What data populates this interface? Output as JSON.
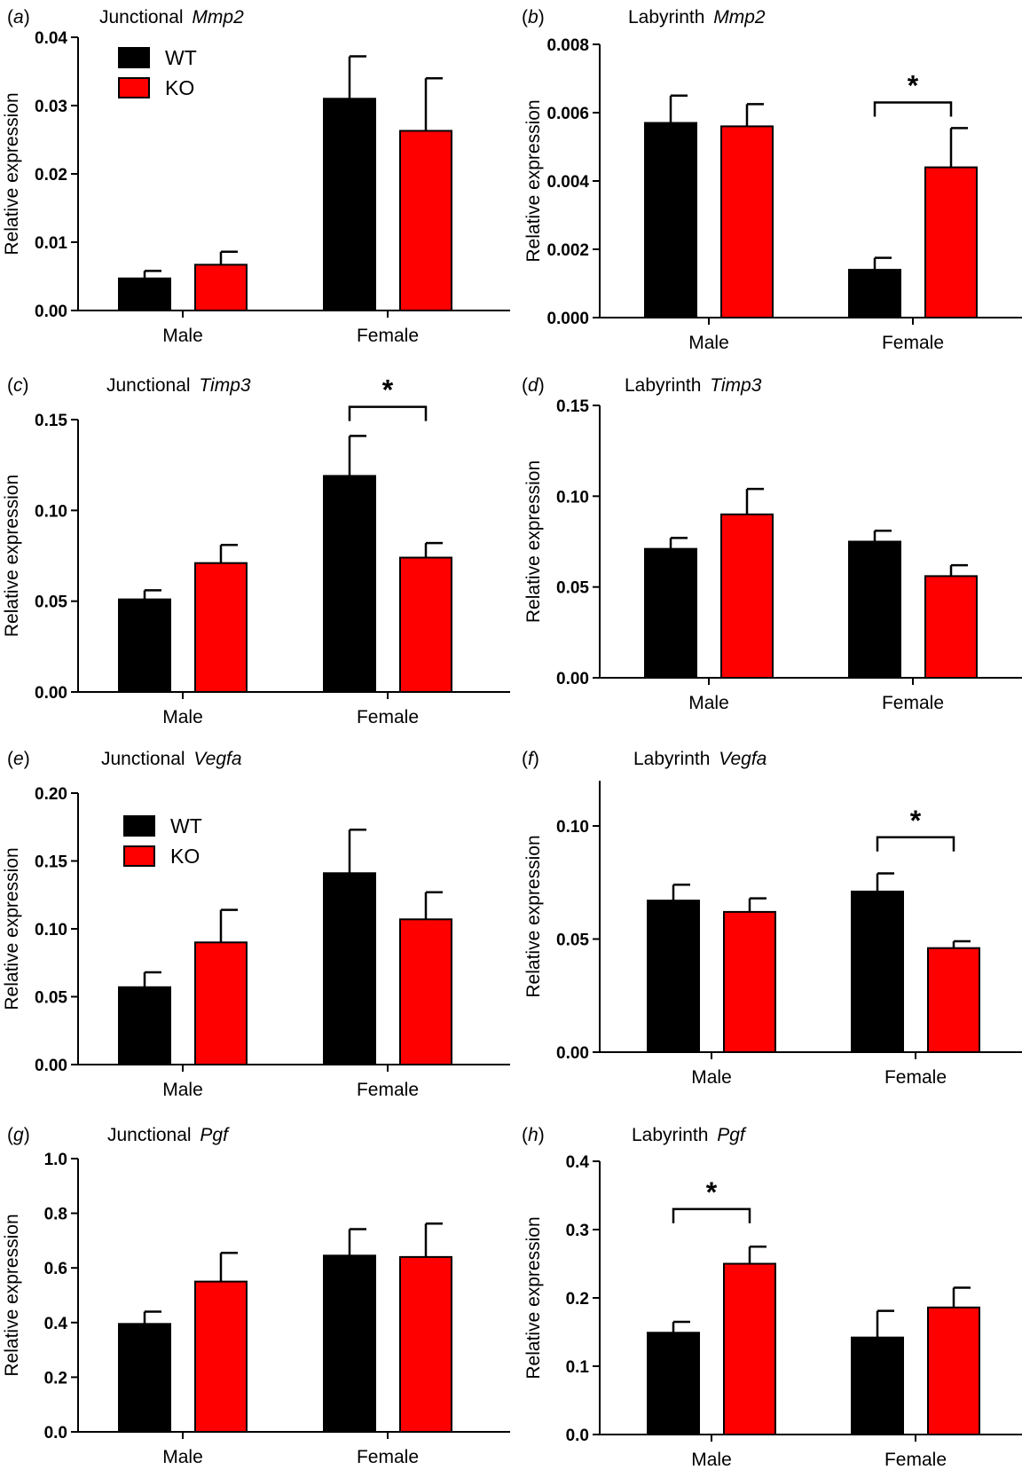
{
  "colors": {
    "WT": "#000000",
    "KO": "#ff0000",
    "axis": "#000000"
  },
  "legend_labels": {
    "WT": "WT",
    "KO": "KO"
  },
  "chart_data": [
    {
      "type": "bar",
      "panel": "(a)",
      "title_prefix": "Junctional ",
      "title_gene": "Mmp2",
      "xlabel": "",
      "ylabel": "Relative expression",
      "categories": [
        "Male",
        "Female"
      ],
      "series": [
        {
          "name": "WT",
          "values": [
            0.0047,
            0.031
          ],
          "errors": [
            0.0011,
            0.0062
          ]
        },
        {
          "name": "KO",
          "values": [
            0.0067,
            0.0263
          ],
          "errors": [
            0.0019,
            0.0077
          ]
        }
      ],
      "ylim": [
        0,
        0.04
      ],
      "yticks": [
        "0.00",
        "0.01",
        "0.02",
        "0.03",
        "0.04"
      ],
      "legend": true,
      "significance": []
    },
    {
      "type": "bar",
      "panel": "(b)",
      "title_prefix": "Labyrinth ",
      "title_gene": "Mmp2",
      "xlabel": "",
      "ylabel": "Relative expression",
      "categories": [
        "Male",
        "Female"
      ],
      "series": [
        {
          "name": "WT",
          "values": [
            0.0057,
            0.0014
          ],
          "errors": [
            0.0008,
            0.00035
          ]
        },
        {
          "name": "KO",
          "values": [
            0.0056,
            0.0044
          ],
          "errors": [
            0.00065,
            0.00115
          ]
        }
      ],
      "ylim": [
        0,
        0.008
      ],
      "yticks": [
        "0.000",
        "0.002",
        "0.004",
        "0.006",
        "0.008"
      ],
      "legend": false,
      "significance": [
        {
          "category": 1,
          "label": "*",
          "level": 0.0063
        }
      ]
    },
    {
      "type": "bar",
      "panel": "(c)",
      "title_prefix": "Junctional ",
      "title_gene": "Timp3",
      "xlabel": "",
      "ylabel": "Relative expression",
      "categories": [
        "Male",
        "Female"
      ],
      "series": [
        {
          "name": "WT",
          "values": [
            0.051,
            0.119
          ],
          "errors": [
            0.005,
            0.022
          ]
        },
        {
          "name": "KO",
          "values": [
            0.071,
            0.074
          ],
          "errors": [
            0.01,
            0.008
          ]
        }
      ],
      "ylim": [
        0,
        0.15
      ],
      "yticks": [
        "0.00",
        "0.05",
        "0.10",
        "0.15"
      ],
      "legend": false,
      "significance": [
        {
          "category": 1,
          "label": "*",
          "level": 0.157
        }
      ]
    },
    {
      "type": "bar",
      "panel": "(d)",
      "title_prefix": "Labyrinth ",
      "title_gene": "Timp3",
      "xlabel": "",
      "ylabel": "Relative expression",
      "categories": [
        "Male",
        "Female"
      ],
      "series": [
        {
          "name": "WT",
          "values": [
            0.071,
            0.075
          ],
          "errors": [
            0.006,
            0.006
          ]
        },
        {
          "name": "KO",
          "values": [
            0.09,
            0.056
          ],
          "errors": [
            0.014,
            0.006
          ]
        }
      ],
      "ylim": [
        0,
        0.15
      ],
      "yticks": [
        "0.00",
        "0.05",
        "0.10",
        "0.15"
      ],
      "legend": false,
      "significance": []
    },
    {
      "type": "bar",
      "panel": "(e)",
      "title_prefix": "Junctional ",
      "title_gene": "Vegfa",
      "xlabel": "",
      "ylabel": "Relative expression",
      "categories": [
        "Male",
        "Female"
      ],
      "series": [
        {
          "name": "WT",
          "values": [
            0.057,
            0.141
          ],
          "errors": [
            0.011,
            0.032
          ]
        },
        {
          "name": "KO",
          "values": [
            0.09,
            0.107
          ],
          "errors": [
            0.024,
            0.02
          ]
        }
      ],
      "ylim": [
        0,
        0.2
      ],
      "yticks": [
        "0.00",
        "0.05",
        "0.10",
        "0.15",
        "0.20"
      ],
      "legend": true,
      "significance": []
    },
    {
      "type": "bar",
      "panel": "(f)",
      "title_prefix": "Labyrinth ",
      "title_gene": "Vegfa",
      "xlabel": "",
      "ylabel": "Relative expression",
      "categories": [
        "Male",
        "Female"
      ],
      "series": [
        {
          "name": "WT",
          "values": [
            0.067,
            0.071
          ],
          "errors": [
            0.007,
            0.008
          ]
        },
        {
          "name": "KO",
          "values": [
            0.062,
            0.046
          ],
          "errors": [
            0.006,
            0.003
          ]
        }
      ],
      "ylim": [
        0,
        0.12
      ],
      "yticks": [
        "0.00",
        "0.05",
        "0.10"
      ],
      "legend": false,
      "significance": [
        {
          "category": 1,
          "label": "*",
          "level": 0.095
        }
      ]
    },
    {
      "type": "bar",
      "panel": "(g)",
      "title_prefix": "Junctional ",
      "title_gene": "Pgf",
      "xlabel": "",
      "ylabel": "Relative expression",
      "categories": [
        "Male",
        "Female"
      ],
      "series": [
        {
          "name": "WT",
          "values": [
            0.395,
            0.645
          ],
          "errors": [
            0.045,
            0.097
          ]
        },
        {
          "name": "KO",
          "values": [
            0.55,
            0.64
          ],
          "errors": [
            0.105,
            0.122
          ]
        }
      ],
      "ylim": [
        0,
        1.0
      ],
      "yticks": [
        "0.0",
        "0.2",
        "0.4",
        "0.6",
        "0.8",
        "1.0"
      ],
      "legend": false,
      "significance": []
    },
    {
      "type": "bar",
      "panel": "(h)",
      "title_prefix": "Labyrinth ",
      "title_gene": "Pgf",
      "xlabel": "",
      "ylabel": "Relative expression",
      "categories": [
        "Male",
        "Female"
      ],
      "series": [
        {
          "name": "WT",
          "values": [
            0.149,
            0.142
          ],
          "errors": [
            0.016,
            0.039
          ]
        },
        {
          "name": "KO",
          "values": [
            0.25,
            0.186
          ],
          "errors": [
            0.025,
            0.029
          ]
        }
      ],
      "ylim": [
        0,
        0.4
      ],
      "yticks": [
        "0.0",
        "0.1",
        "0.2",
        "0.3",
        "0.4"
      ],
      "legend": false,
      "significance": [
        {
          "category": 0,
          "label": "*",
          "level": 0.33
        }
      ]
    }
  ]
}
